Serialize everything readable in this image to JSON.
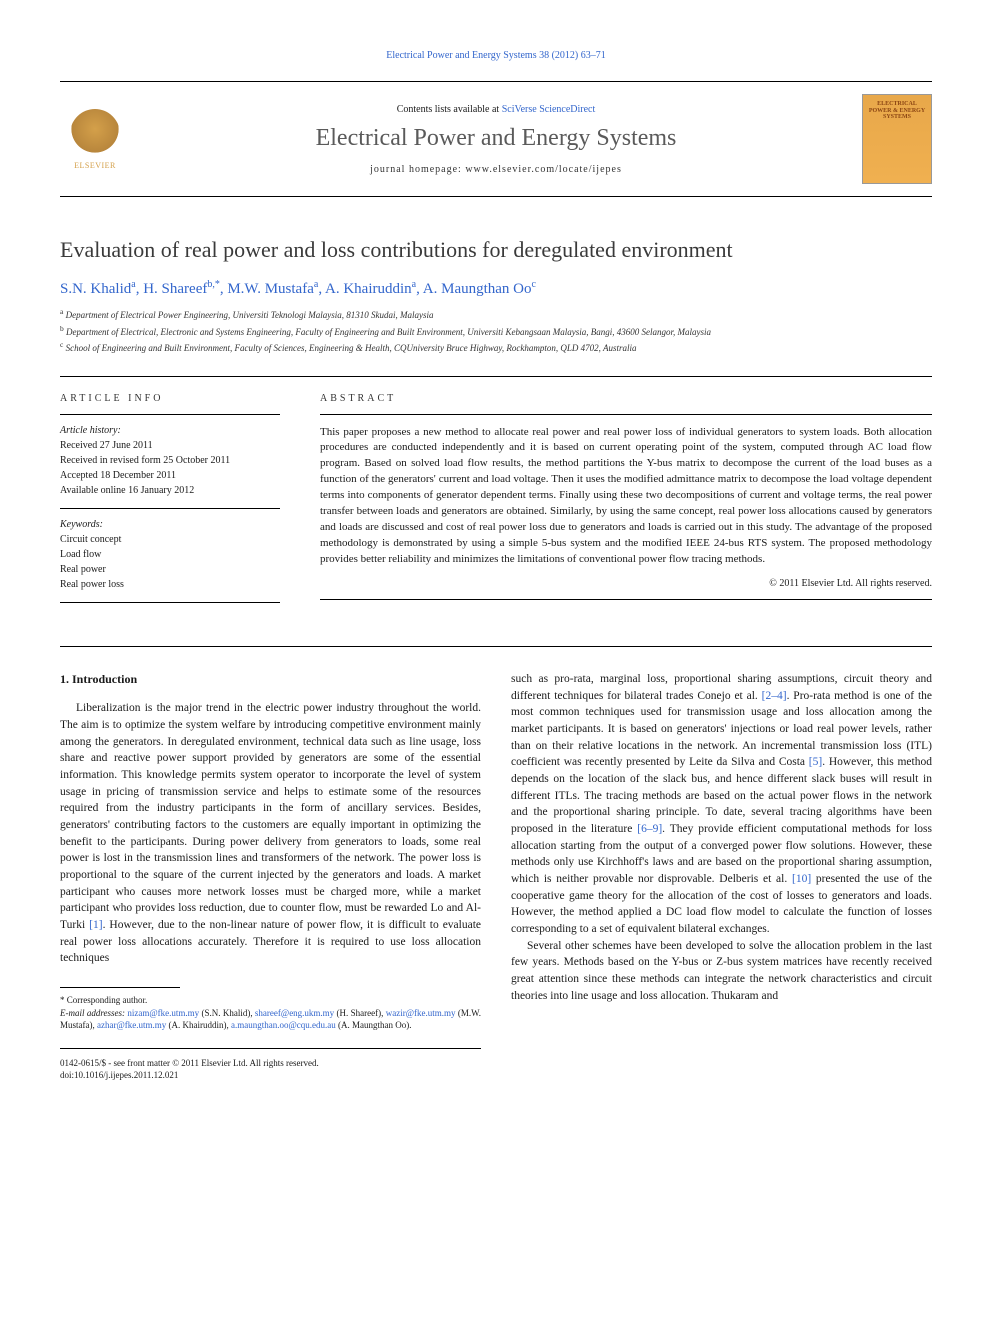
{
  "citation": "Electrical Power and Energy Systems 38 (2012) 63–71",
  "header": {
    "elsevier_label": "ELSEVIER",
    "contents_prefix": "Contents lists available at ",
    "contents_link": "SciVerse ScienceDirect",
    "journal_title": "Electrical Power and Energy Systems",
    "homepage_label": "journal homepage: www.elsevier.com/locate/ijepes",
    "cover_text": "ELECTRICAL POWER & ENERGY SYSTEMS"
  },
  "paper": {
    "title": "Evaluation of real power and loss contributions for deregulated environment",
    "authors_html": "S.N. Khalid<sup>a</sup>, H. Shareef<sup>b,*</sup>, M.W. Mustafa<sup>a</sup>, A. Khairuddin<sup>a</sup>, A. Maungthan Oo<sup>c</sup>",
    "affiliations": {
      "a": "Department of Electrical Power Engineering, Universiti Teknologi Malaysia, 81310 Skudai, Malaysia",
      "b": "Department of Electrical, Electronic and Systems Engineering, Faculty of Engineering and Built Environment, Universiti Kebangsaan Malaysia, Bangi, 43600 Selangor, Malaysia",
      "c": "School of Engineering and Built Environment, Faculty of Sciences, Engineering & Health, CQUniversity Bruce Highway, Rockhampton, QLD 4702, Australia"
    }
  },
  "article_info": {
    "heading": "ARTICLE INFO",
    "history_label": "Article history:",
    "received": "Received 27 June 2011",
    "revised": "Received in revised form 25 October 2011",
    "accepted": "Accepted 18 December 2011",
    "online": "Available online 16 January 2012",
    "keywords_label": "Keywords:",
    "keywords": [
      "Circuit concept",
      "Load flow",
      "Real power",
      "Real power loss"
    ]
  },
  "abstract": {
    "heading": "ABSTRACT",
    "text": "This paper proposes a new method to allocate real power and real power loss of individual generators to system loads. Both allocation procedures are conducted independently and it is based on current operating point of the system, computed through AC load flow program. Based on solved load flow results, the method partitions the Y-bus matrix to decompose the current of the load buses as a function of the generators' current and load voltage. Then it uses the modified admittance matrix to decompose the load voltage dependent terms into components of generator dependent terms. Finally using these two decompositions of current and voltage terms, the real power transfer between loads and generators are obtained. Similarly, by using the same concept, real power loss allocations caused by generators and loads are discussed and cost of real power loss due to generators and loads is carried out in this study. The advantage of the proposed methodology is demonstrated by using a simple 5-bus system and the modified IEEE 24-bus RTS system. The proposed methodology provides better reliability and minimizes the limitations of conventional power flow tracing methods.",
    "copyright": "© 2011 Elsevier Ltd. All rights reserved."
  },
  "body": {
    "section1_heading": "1. Introduction",
    "col1_p1": "Liberalization is the major trend in the electric power industry throughout the world. The aim is to optimize the system welfare by introducing competitive environment mainly among the generators. In deregulated environment, technical data such as line usage, loss share and reactive power support provided by generators are some of the essential information. This knowledge permits system operator to incorporate the level of system usage in pricing of transmission service and helps to estimate some of the resources required from the industry participants in the form of ancillary services. Besides, generators' contributing factors to the customers are equally important in optimizing the benefit to the participants. During power delivery from generators to loads, some real power is lost in the transmission lines and transformers of the network. The power loss is proportional to the square of the current injected by the generators and loads. A market participant who causes more network losses must be charged more, while a market participant who provides loss reduction, due to counter flow, must be rewarded Lo and Al-Turki ",
    "col1_ref1": "[1]",
    "col1_p1b": ". However, due to the non-linear nature of power flow, it is difficult to evaluate real power loss allocations accurately. Therefore it is required to use loss allocation techniques",
    "col2_p1a": "such as pro-rata, marginal loss, proportional sharing assumptions, circuit theory and different techniques for bilateral trades Conejo et al. ",
    "col2_ref24": "[2–4]",
    "col2_p1b": ". Pro-rata method is one of the most common techniques used for transmission usage and loss allocation among the market participants. It is based on generators' injections or load real power levels, rather than on their relative locations in the network. An incremental transmission loss (ITL) coefficient was recently presented by Leite da Silva and Costa ",
    "col2_ref5": "[5]",
    "col2_p1c": ". However, this method depends on the location of the slack bus, and hence different slack buses will result in different ITLs. The tracing methods are based on the actual power flows in the network and the proportional sharing principle. To date, several tracing algorithms have been proposed in the literature ",
    "col2_ref69": "[6–9]",
    "col2_p1d": ". They provide efficient computational methods for loss allocation starting from the output of a converged power flow solutions. However, these methods only use Kirchhoff's laws and are based on the proportional sharing assumption, which is neither provable nor disprovable. Delberis et al. ",
    "col2_ref10": "[10]",
    "col2_p1e": " presented the use of the cooperative game theory for the allocation of the cost of losses to generators and loads. However, the method applied a DC load flow model to calculate the function of losses corresponding to a set of equivalent bilateral exchanges.",
    "col2_p2": "Several other schemes have been developed to solve the allocation problem in the last few years. Methods based on the Y-bus or Z-bus system matrices have recently received great attention since these methods can integrate the network characteristics and circuit theories into line usage and loss allocation. Thukaram and"
  },
  "footnote": {
    "corresponding": "* Corresponding author.",
    "email_label": "E-mail addresses:",
    "emails": [
      {
        "addr": "nizam@fke.utm.my",
        "name": "(S.N. Khalid)"
      },
      {
        "addr": "shareef@eng.ukm.my",
        "name": "(H. Shareef)"
      },
      {
        "addr": "wazir@fke.utm.my",
        "name": "(M.W. Mustafa)"
      },
      {
        "addr": "azhar@fke.utm.my",
        "name": "(A. Khairuddin)"
      },
      {
        "addr": "a.maungthan.oo@cqu.edu.au",
        "name": "(A. Maungthan Oo)"
      }
    ]
  },
  "footer": {
    "line1": "0142-0615/$ - see front matter © 2011 Elsevier Ltd. All rights reserved.",
    "line2": "doi:10.1016/j.ijepes.2011.12.021"
  },
  "colors": {
    "link": "#3366cc",
    "text": "#1a1a1a",
    "heading": "#3a3a3a",
    "elsevier": "#d4a04a",
    "cover_bg": "#e8a84a"
  }
}
